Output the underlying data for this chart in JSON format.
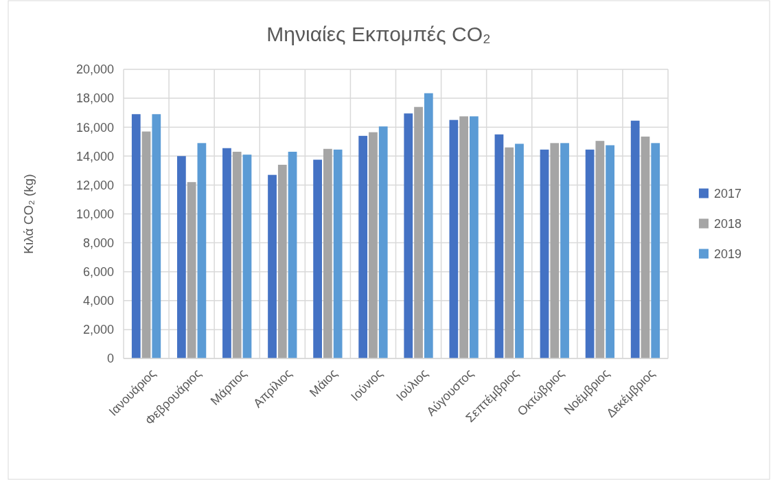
{
  "chart_data": {
    "type": "bar",
    "title": "Μηνιαίες Εκπομπές CO₂",
    "ylabel": "Κιλά CO₂ (kg)",
    "categories": [
      "Ιανουάριος",
      "Φεβρουάριος",
      "Μάρτιος",
      "Απρίλιος",
      "Μάιος",
      "Ιούνιος",
      "Ιούλιος",
      "Αύγουστος",
      "Σεπτέμβριος",
      "Οκτώβριος",
      "Νοέμβριος",
      "Δεκέμβριος"
    ],
    "series": [
      {
        "name": "2017",
        "color": "#4472c4",
        "values": [
          16900,
          14000,
          14550,
          12700,
          13750,
          15400,
          16950,
          16500,
          15500,
          14450,
          14450,
          16450
        ]
      },
      {
        "name": "2018",
        "color": "#a5a5a5",
        "values": [
          15700,
          12200,
          14300,
          13400,
          14500,
          15650,
          17400,
          16750,
          14600,
          14900,
          15050,
          15350
        ]
      },
      {
        "name": "2019",
        "color": "#5b9bd5",
        "values": [
          16900,
          14900,
          14100,
          14300,
          14450,
          16050,
          18350,
          16750,
          14850,
          14900,
          14750,
          14900
        ]
      }
    ],
    "ylim": [
      0,
      20000
    ],
    "yticks": [
      {
        "value": 0,
        "label": "0"
      },
      {
        "value": 2000,
        "label": "2,000"
      },
      {
        "value": 4000,
        "label": "4,000"
      },
      {
        "value": 6000,
        "label": "6,000"
      },
      {
        "value": 8000,
        "label": "8,000"
      },
      {
        "value": 10000,
        "label": "10,000"
      },
      {
        "value": 12000,
        "label": "12,000"
      },
      {
        "value": 14000,
        "label": "14,000"
      },
      {
        "value": 16000,
        "label": "16,000"
      },
      {
        "value": 18000,
        "label": "18,000"
      },
      {
        "value": 20000,
        "label": "20,000"
      }
    ],
    "grid": true,
    "legend": "right"
  }
}
